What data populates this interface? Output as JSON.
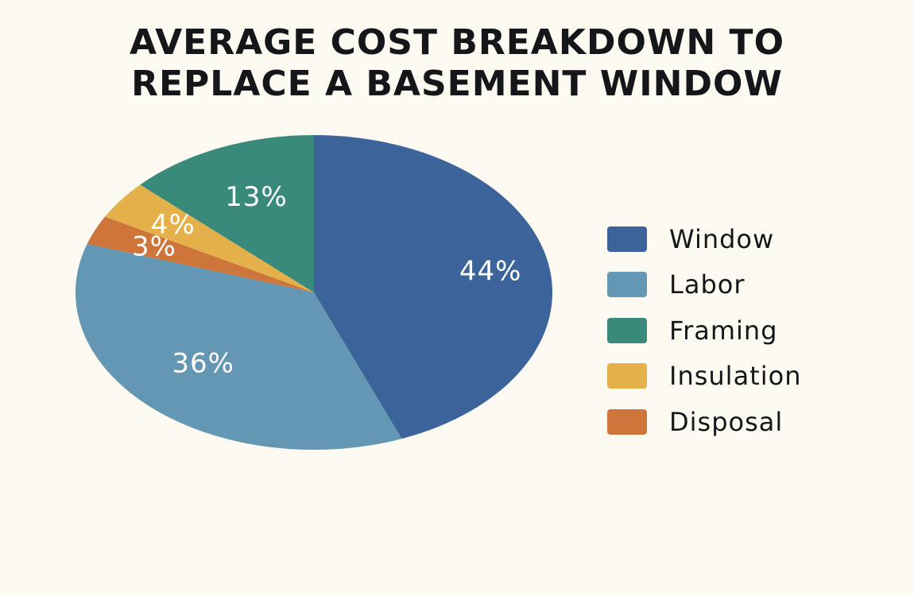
{
  "chart_data": {
    "type": "pie",
    "title_lines": [
      "AVERAGE COST BREAKDOWN TO",
      "REPLACE A BASEMENT WINDOW"
    ],
    "slices": [
      {
        "name": "Window",
        "value": 44,
        "label": "44%",
        "color": "#3c649a"
      },
      {
        "name": "Labor",
        "value": 36,
        "label": "36%",
        "color": "#6497b3"
      },
      {
        "name": "Disposal",
        "value": 3,
        "label": "3%",
        "color": "#cd753b"
      },
      {
        "name": "Insulation",
        "value": 4,
        "label": "4%",
        "color": "#e4b049"
      },
      {
        "name": "Framing",
        "value": 13,
        "label": "13%",
        "color": "#3a8a7c"
      }
    ],
    "legend": {
      "placement": "right",
      "items": [
        {
          "name": "Window",
          "color": "#3c649a"
        },
        {
          "name": "Labor",
          "color": "#6497b3"
        },
        {
          "name": "Framing",
          "color": "#3a8a7c"
        },
        {
          "name": "Insulation",
          "color": "#e4b049"
        },
        {
          "name": "Disposal",
          "color": "#cd753b"
        }
      ]
    }
  }
}
